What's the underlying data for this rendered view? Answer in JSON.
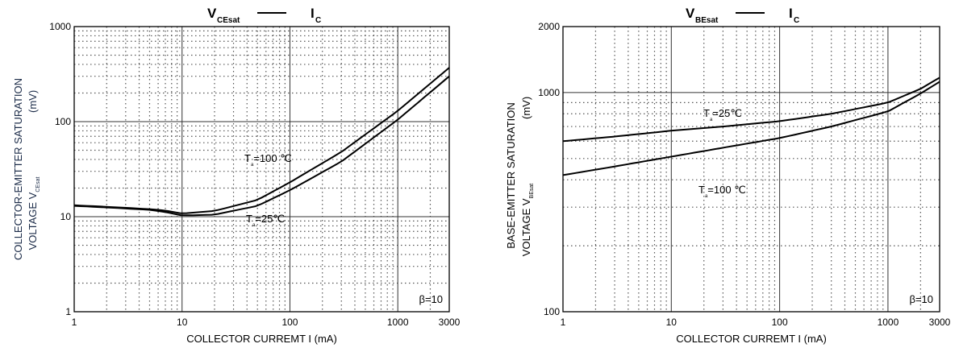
{
  "chart_data": [
    {
      "type": "line",
      "title": {
        "main": "V",
        "main_sub": "CEsat",
        "dash": "——",
        "vs": "I",
        "vs_sub": "C"
      },
      "xlabel": "COLLECTOR CURREMT I (mA)",
      "ylabel_line1": "COLLECTOR-EMITTER SATURATION",
      "ylabel_line2": "VOLTAGE   V",
      "ylabel_sub": "CEsat",
      "ylabel_unit": "(mV)",
      "xscale": "log",
      "yscale": "log",
      "xlim": [
        1,
        3000
      ],
      "ylim": [
        1,
        1000
      ],
      "xticks": [
        "1",
        "10",
        "100",
        "1000",
        "3000"
      ],
      "xtick_values": [
        1,
        10,
        100,
        1000,
        3000
      ],
      "yticks": [
        "1",
        "10",
        "100",
        "1000"
      ],
      "ytick_values": [
        1,
        10,
        100,
        1000
      ],
      "grid": true,
      "annotation": "β=10",
      "series": [
        {
          "name": "Ta=100 ℃",
          "label_main": "T",
          "label_sub": "a",
          "label_rest": "=100 ℃",
          "x": [
            1,
            3,
            5,
            7,
            10,
            20,
            50,
            100,
            300,
            1000,
            3000
          ],
          "y": [
            13.2,
            12.4,
            12.0,
            11.6,
            10.8,
            11.5,
            15,
            23,
            48,
            130,
            370
          ]
        },
        {
          "name": "Ta=25℃",
          "label_main": "T",
          "label_sub": "a",
          "label_rest": "=25℃",
          "x": [
            1,
            3,
            5,
            7,
            10,
            20,
            50,
            100,
            300,
            1000,
            3000
          ],
          "y": [
            13.0,
            12.2,
            11.8,
            11.2,
            10.3,
            10.5,
            13,
            19,
            38,
            105,
            300
          ]
        }
      ]
    },
    {
      "type": "line",
      "title": {
        "main": "V",
        "main_sub": "BEsat",
        "dash": "——",
        "vs": "I",
        "vs_sub": "C"
      },
      "xlabel": "COLLECTOR CURREMT I (mA)",
      "ylabel_line1": "BASE-EMITTER SATURATION",
      "ylabel_line2": "VOLTAGE   V",
      "ylabel_sub": "BEsat",
      "ylabel_unit": "(mV)",
      "xscale": "log",
      "yscale": "log",
      "xlim": [
        1,
        3000
      ],
      "ylim": [
        100,
        2000
      ],
      "xticks": [
        "1",
        "10",
        "100",
        "1000",
        "3000"
      ],
      "xtick_values": [
        1,
        10,
        100,
        1000,
        3000
      ],
      "yticks": [
        "100",
        "1000",
        "2000"
      ],
      "ytick_values": [
        100,
        1000,
        2000
      ],
      "grid": true,
      "annotation": "β=10",
      "series": [
        {
          "name": "Ta=25℃",
          "label_main": "T",
          "label_sub": "a",
          "label_rest": "=25℃",
          "x": [
            1,
            3,
            10,
            30,
            100,
            300,
            1000,
            2000,
            3000
          ],
          "y": [
            600,
            630,
            670,
            700,
            740,
            800,
            900,
            1040,
            1170
          ]
        },
        {
          "name": "Ta=100 ℃",
          "label_main": "T",
          "label_sub": "a",
          "label_rest": "=100 ℃",
          "x": [
            1,
            3,
            10,
            30,
            100,
            300,
            1000,
            2000,
            3000
          ],
          "y": [
            420,
            460,
            510,
            560,
            620,
            700,
            820,
            990,
            1120
          ]
        }
      ]
    }
  ]
}
